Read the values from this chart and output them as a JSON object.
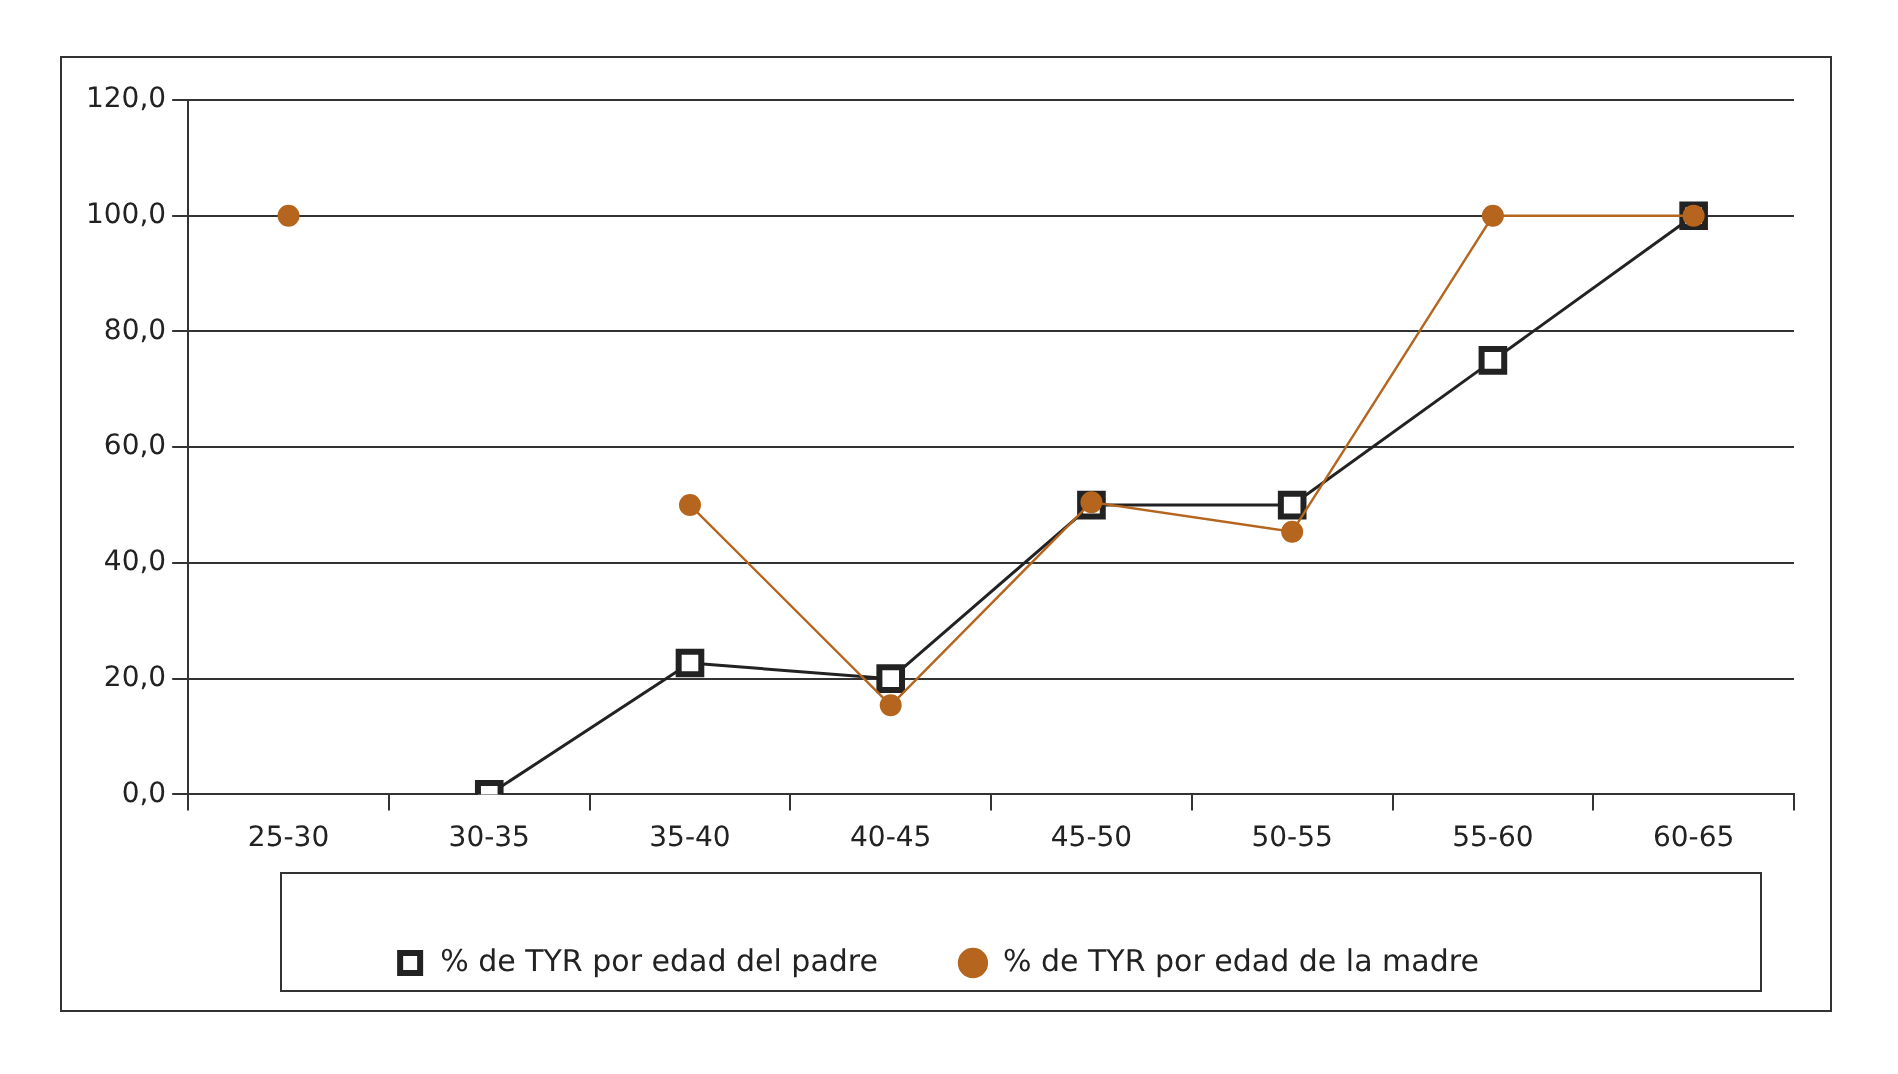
{
  "chart_data": {
    "type": "line",
    "categories": [
      "25-30",
      "30-35",
      "35-40",
      "40-45",
      "45-50",
      "50-55",
      "55-60",
      "60-65"
    ],
    "series": [
      {
        "name": "% de TYR por edad del padre",
        "color": "#222222",
        "marker": "square",
        "values": [
          null,
          0,
          22.7,
          20,
          50,
          50,
          75,
          100
        ]
      },
      {
        "name": "% de TYR por edad de la madre",
        "color": "#b5651d",
        "marker": "circle",
        "values": [
          100,
          null,
          50,
          15.4,
          50.5,
          45.4,
          100,
          100
        ]
      }
    ],
    "ylim": [
      0,
      120
    ],
    "yticks": [
      {
        "value": 0,
        "label": "0,0"
      },
      {
        "value": 20,
        "label": "20,0"
      },
      {
        "value": 40,
        "label": "40,0"
      },
      {
        "value": 60,
        "label": "60,0"
      },
      {
        "value": 80,
        "label": "80,0"
      },
      {
        "value": 100,
        "label": "100,0"
      },
      {
        "value": 120,
        "label": "120,0"
      }
    ],
    "grid": "y",
    "legend": "bottom"
  }
}
